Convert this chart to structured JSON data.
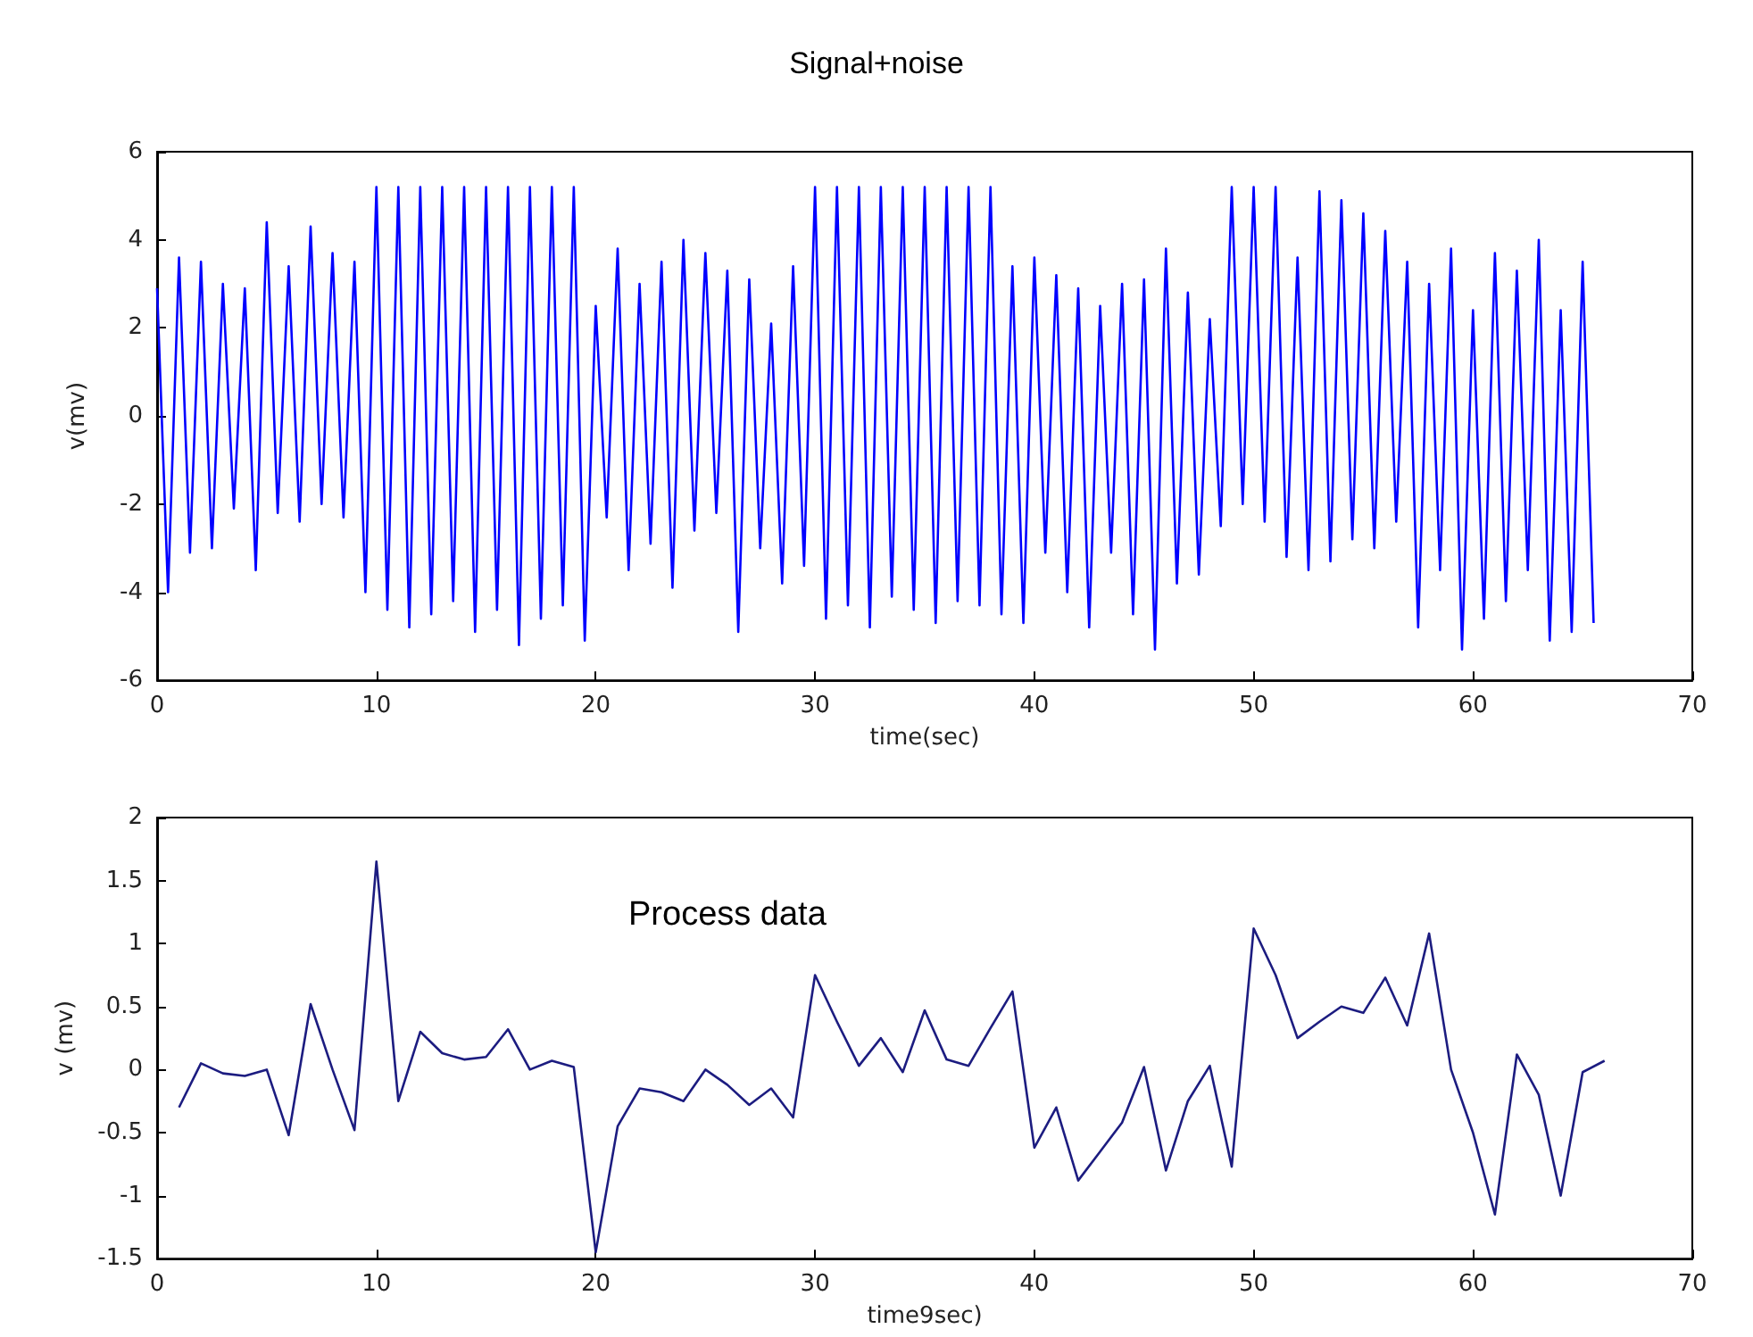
{
  "chart_data": [
    {
      "type": "line",
      "title": "Signal+noise",
      "xlabel": "time(sec)",
      "ylabel": "v(mv)",
      "xlim": [
        0,
        70
      ],
      "xticks": [
        0,
        10,
        20,
        30,
        40,
        50,
        60,
        70
      ],
      "ylim": [
        -6,
        6
      ],
      "yticks": [
        -6,
        -4,
        -2,
        0,
        2,
        4,
        6
      ],
      "marker": "none",
      "x": [
        0,
        0.5,
        1,
        1.5,
        2,
        2.5,
        3,
        3.5,
        4,
        4.5,
        5,
        5.5,
        6,
        6.5,
        7,
        7.5,
        8,
        8.5,
        9,
        9.5,
        10,
        10.5,
        11,
        11.5,
        12,
        12.5,
        13,
        13.5,
        14,
        14.5,
        15,
        15.5,
        16,
        16.5,
        17,
        17.5,
        18,
        18.5,
        19,
        19.5,
        20,
        20.5,
        21,
        21.5,
        22,
        22.5,
        23,
        23.5,
        24,
        24.5,
        25,
        25.5,
        26,
        26.5,
        27,
        27.5,
        28,
        28.5,
        29,
        29.5,
        30,
        30.5,
        31,
        31.5,
        32,
        32.5,
        33,
        33.5,
        34,
        34.5,
        35,
        35.5,
        36,
        36.5,
        37,
        37.5,
        38,
        38.5,
        39,
        39.5,
        40,
        40.5,
        41,
        41.5,
        42,
        42.5,
        43,
        43.5,
        44,
        44.5,
        45,
        45.5,
        46,
        46.5,
        47,
        47.5,
        48,
        48.5,
        49,
        49.5,
        50,
        50.5,
        51,
        51.5,
        52,
        52.5,
        53,
        53.5,
        54,
        54.5,
        55,
        55.5,
        56,
        56.5,
        57,
        57.5,
        58,
        58.5,
        59,
        59.5,
        60,
        60.5,
        61,
        61.5,
        62,
        62.5,
        63,
        63.5,
        64,
        64.5,
        65,
        65.5
      ],
      "series": [
        {
          "color": "#0000ff",
          "values": [
            2.9,
            -4.0,
            3.6,
            -3.1,
            3.5,
            -3.0,
            3.0,
            -2.1,
            2.9,
            -3.5,
            4.4,
            -2.2,
            3.4,
            -2.4,
            4.3,
            -2.0,
            3.7,
            -2.3,
            3.5,
            -4.0,
            5.2,
            -4.4,
            5.2,
            -4.8,
            5.2,
            -4.5,
            5.2,
            -4.2,
            5.2,
            -4.9,
            5.2,
            -4.4,
            5.2,
            -5.2,
            5.2,
            -4.6,
            5.2,
            -4.3,
            5.2,
            -5.1,
            2.5,
            -2.3,
            3.8,
            -3.5,
            3.0,
            -2.9,
            3.5,
            -3.9,
            4.0,
            -2.6,
            3.7,
            -2.2,
            3.3,
            -4.9,
            3.1,
            -3.0,
            2.1,
            -3.8,
            3.4,
            -3.4,
            5.2,
            -4.6,
            5.2,
            -4.3,
            5.2,
            -4.8,
            5.2,
            -4.1,
            5.2,
            -4.4,
            5.2,
            -4.7,
            5.2,
            -4.2,
            5.2,
            -4.3,
            5.2,
            -4.5,
            3.4,
            -4.7,
            3.6,
            -3.1,
            3.2,
            -4.0,
            2.9,
            -4.8,
            2.5,
            -3.1,
            3.0,
            -4.5,
            3.1,
            -5.3,
            3.8,
            -3.8,
            2.8,
            -3.6,
            2.2,
            -2.5,
            5.2,
            -2.0,
            5.2,
            -2.4,
            5.2,
            -3.2,
            3.6,
            -3.5,
            5.1,
            -3.3,
            4.9,
            -2.8,
            4.6,
            -3.0,
            4.2,
            -2.4,
            3.5,
            -4.8,
            3.0,
            -3.5,
            3.8,
            -5.3,
            2.4,
            -4.6,
            3.7,
            -4.2,
            3.3,
            -3.5,
            4.0,
            -5.1,
            2.4,
            -4.9,
            3.5,
            -4.7
          ]
        }
      ]
    },
    {
      "type": "line",
      "xlabel": "time9sec)",
      "ylabel": "v (mv)",
      "annotations": [
        "Process data"
      ],
      "xlim": [
        0,
        70
      ],
      "xticks": [
        0,
        10,
        20,
        30,
        40,
        50,
        60,
        70
      ],
      "ylim": [
        -1.5,
        2
      ],
      "yticks": [
        -1.5,
        -1,
        -0.5,
        0,
        0.5,
        1,
        1.5,
        2
      ],
      "marker": "none",
      "x": [
        1,
        2,
        3,
        4,
        5,
        6,
        7,
        8,
        9,
        10,
        11,
        12,
        13,
        14,
        15,
        16,
        17,
        18,
        19,
        20,
        21,
        22,
        23,
        24,
        25,
        26,
        27,
        28,
        29,
        30,
        31,
        32,
        33,
        34,
        35,
        36,
        37,
        38,
        39,
        40,
        41,
        42,
        43,
        44,
        45,
        46,
        47,
        48,
        49,
        50,
        51,
        52,
        53,
        54,
        55,
        56,
        57,
        58,
        59,
        60,
        61,
        62,
        63,
        64,
        65,
        66
      ],
      "series": [
        {
          "color": "#1c1c80",
          "values": [
            -0.3,
            0.05,
            -0.03,
            -0.05,
            0.0,
            -0.52,
            0.52,
            0.0,
            -0.48,
            1.65,
            -0.25,
            0.3,
            0.13,
            0.08,
            0.1,
            0.32,
            0.0,
            0.07,
            0.02,
            -1.45,
            -0.45,
            -0.15,
            -0.18,
            -0.25,
            0.0,
            -0.12,
            -0.28,
            -0.15,
            -0.38,
            0.75,
            0.38,
            0.03,
            0.25,
            -0.02,
            0.47,
            0.08,
            0.03,
            0.33,
            0.62,
            -0.62,
            -0.3,
            -0.88,
            -0.65,
            -0.42,
            0.02,
            -0.8,
            -0.25,
            0.03,
            -0.77,
            1.12,
            0.75,
            0.25,
            0.38,
            0.5,
            0.45,
            0.73,
            0.35,
            1.08,
            0.0,
            -0.5,
            -1.15,
            0.12,
            -0.2,
            -1.0,
            -0.02,
            0.07
          ]
        }
      ]
    }
  ]
}
